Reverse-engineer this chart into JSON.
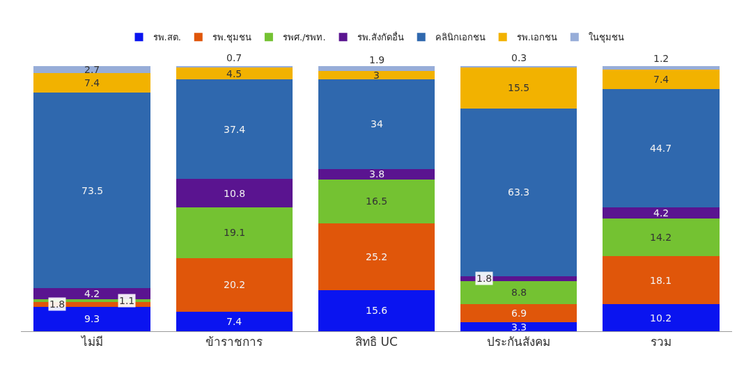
{
  "chart_data": {
    "type": "bar",
    "stacked": true,
    "data_labels": true,
    "legend": "top",
    "grid": false,
    "categories": [
      "ไม่มี",
      "ข้าราชการ",
      "สิทธิ UC",
      "ประกันสังคม",
      "รวม"
    ],
    "ylim": [
      0,
      100
    ],
    "series": [
      {
        "name": "รพ.สต.",
        "color": "#0a14f0",
        "values": [
          9.3,
          7.4,
          15.6,
          3.3,
          10.2
        ]
      },
      {
        "name": "รพ.ชุมชน",
        "color": "#e0560a",
        "values": [
          1.8,
          20.2,
          25.2,
          6.9,
          18.1
        ]
      },
      {
        "name": "รพศ./รพท.",
        "color": "#74c232",
        "values": [
          1.1,
          19.1,
          16.5,
          8.8,
          14.2
        ]
      },
      {
        "name": "รพ.สังกัดอื่น",
        "color": "#5a1490",
        "values": [
          4.2,
          10.8,
          3.8,
          1.8,
          4.2
        ]
      },
      {
        "name": "คลินิกเอกชน",
        "color": "#2f68ae",
        "values": [
          73.5,
          37.4,
          34,
          63.3,
          44.7
        ]
      },
      {
        "name": "รพ.เอกชน",
        "color": "#f2b200",
        "values": [
          7.4,
          4.5,
          3,
          15.5,
          7.4
        ]
      },
      {
        "name": "ในชุมชน",
        "color": "#97add8",
        "values": [
          2.7,
          0.7,
          1.9,
          0.3,
          1.2
        ]
      }
    ]
  }
}
